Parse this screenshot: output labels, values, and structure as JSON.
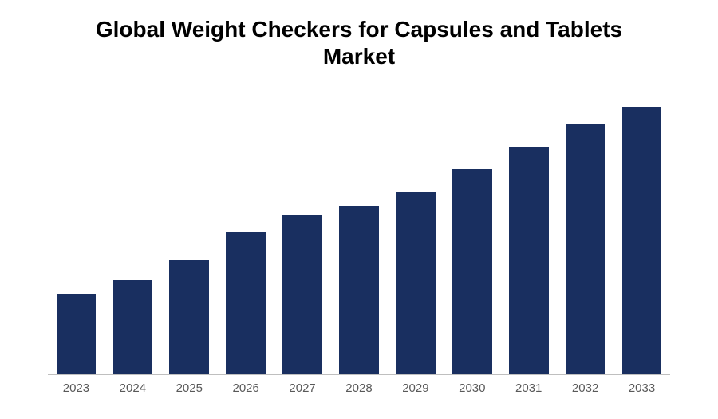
{
  "chart": {
    "type": "bar",
    "title": "Global Weight Checkers for Capsules and Tablets Market",
    "title_fontsize": 28,
    "title_color": "#000000",
    "title_fontweight": "700",
    "background_color": "#ffffff",
    "axis_line_color": "#bfbfbf",
    "categories": [
      "2023",
      "2024",
      "2025",
      "2026",
      "2027",
      "2028",
      "2029",
      "2030",
      "2031",
      "2032",
      "2033"
    ],
    "values": [
      28,
      33,
      40,
      50,
      56,
      59,
      64,
      72,
      80,
      88,
      94
    ],
    "ylim": [
      0,
      100
    ],
    "bar_color": "#192f60",
    "bar_width_ratio": 0.7,
    "x_label_color": "#595959",
    "x_label_fontsize": 15,
    "show_y_axis": false,
    "show_gridlines": false
  }
}
